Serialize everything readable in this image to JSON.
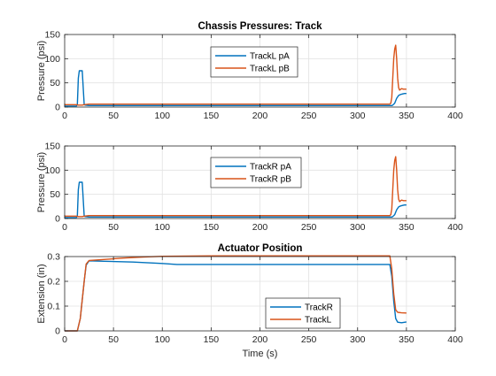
{
  "figure": {
    "background": "#ffffff"
  },
  "chart_data": [
    {
      "type": "line",
      "title": "Chassis Pressures: Track",
      "xlabel": "",
      "ylabel": "Pressure (psi)",
      "xlim": [
        0,
        400
      ],
      "ylim": [
        0,
        150
      ],
      "xticks": [
        0,
        50,
        100,
        150,
        200,
        250,
        300,
        350,
        400
      ],
      "yticks": [
        0,
        50,
        100,
        150
      ],
      "grid": true,
      "legend": "top-center",
      "series": [
        {
          "name": "TrackL pA",
          "color": "#0072BD",
          "points": [
            [
              0,
              2
            ],
            [
              12,
              2
            ],
            [
              13,
              5
            ],
            [
              14,
              60
            ],
            [
              15,
              75
            ],
            [
              18,
              75
            ],
            [
              19,
              40
            ],
            [
              20,
              5
            ],
            [
              21,
              4
            ],
            [
              25,
              3
            ],
            [
              60,
              3
            ],
            [
              150,
              3
            ],
            [
              250,
              3
            ],
            [
              335,
              3
            ],
            [
              336,
              4
            ],
            [
              338,
              8
            ],
            [
              340,
              18
            ],
            [
              342,
              24
            ],
            [
              344,
              26
            ],
            [
              346,
              27
            ],
            [
              348,
              28
            ],
            [
              350,
              28
            ]
          ]
        },
        {
          "name": "TrackL pB",
          "color": "#D95319",
          "points": [
            [
              0,
              5
            ],
            [
              12,
              5
            ],
            [
              14,
              4
            ],
            [
              18,
              4
            ],
            [
              20,
              5
            ],
            [
              25,
              6
            ],
            [
              50,
              6
            ],
            [
              100,
              6
            ],
            [
              200,
              6
            ],
            [
              300,
              6
            ],
            [
              333,
              6
            ],
            [
              334,
              8
            ],
            [
              335,
              20
            ],
            [
              336,
              60
            ],
            [
              337,
              100
            ],
            [
              338,
              120
            ],
            [
              339,
              128
            ],
            [
              340,
              100
            ],
            [
              341,
              60
            ],
            [
              342,
              40
            ],
            [
              343,
              35
            ],
            [
              345,
              38
            ],
            [
              347,
              37
            ],
            [
              350,
              37
            ]
          ]
        }
      ]
    },
    {
      "type": "line",
      "title": "",
      "xlabel": "",
      "ylabel": "Pressure (psi)",
      "xlim": [
        0,
        400
      ],
      "ylim": [
        0,
        150
      ],
      "xticks": [
        0,
        50,
        100,
        150,
        200,
        250,
        300,
        350,
        400
      ],
      "yticks": [
        0,
        50,
        100,
        150
      ],
      "grid": true,
      "legend": "top-center",
      "series": [
        {
          "name": "TrackR pA",
          "color": "#0072BD",
          "points": [
            [
              0,
              2
            ],
            [
              12,
              2
            ],
            [
              13,
              5
            ],
            [
              14,
              60
            ],
            [
              15,
              75
            ],
            [
              18,
              75
            ],
            [
              19,
              40
            ],
            [
              20,
              5
            ],
            [
              21,
              4
            ],
            [
              25,
              3
            ],
            [
              60,
              3
            ],
            [
              150,
              3
            ],
            [
              250,
              3
            ],
            [
              335,
              3
            ],
            [
              336,
              4
            ],
            [
              338,
              8
            ],
            [
              340,
              18
            ],
            [
              342,
              24
            ],
            [
              344,
              26
            ],
            [
              346,
              27
            ],
            [
              348,
              28
            ],
            [
              350,
              28
            ]
          ]
        },
        {
          "name": "TrackR pB",
          "color": "#D95319",
          "points": [
            [
              0,
              5
            ],
            [
              12,
              5
            ],
            [
              14,
              4
            ],
            [
              18,
              4
            ],
            [
              20,
              5
            ],
            [
              25,
              6
            ],
            [
              50,
              6
            ],
            [
              100,
              6
            ],
            [
              200,
              6
            ],
            [
              300,
              6
            ],
            [
              333,
              6
            ],
            [
              334,
              8
            ],
            [
              335,
              20
            ],
            [
              336,
              60
            ],
            [
              337,
              100
            ],
            [
              338,
              120
            ],
            [
              339,
              128
            ],
            [
              340,
              100
            ],
            [
              341,
              60
            ],
            [
              342,
              40
            ],
            [
              343,
              35
            ],
            [
              345,
              38
            ],
            [
              347,
              37
            ],
            [
              350,
              37
            ]
          ]
        }
      ]
    },
    {
      "type": "line",
      "title": "Actuator Position",
      "xlabel": "Time (s)",
      "ylabel": "Extension (in)",
      "xlim": [
        0,
        400
      ],
      "ylim": [
        0,
        0.3
      ],
      "xticks": [
        0,
        50,
        100,
        150,
        200,
        250,
        300,
        350,
        400
      ],
      "yticks": [
        0,
        0.1,
        0.2,
        0.3
      ],
      "ytick_labels": [
        "0",
        "0.1",
        "0.2",
        "0.3"
      ],
      "grid": true,
      "legend": "bottom-center",
      "series": [
        {
          "name": "TrackR",
          "color": "#0072BD",
          "points": [
            [
              0,
              0
            ],
            [
              13,
              0
            ],
            [
              16,
              0.05
            ],
            [
              20,
              0.2
            ],
            [
              22,
              0.265
            ],
            [
              25,
              0.283
            ],
            [
              40,
              0.281
            ],
            [
              70,
              0.278
            ],
            [
              100,
              0.272
            ],
            [
              115,
              0.268
            ],
            [
              200,
              0.268
            ],
            [
              300,
              0.268
            ],
            [
              333,
              0.268
            ],
            [
              335,
              0.22
            ],
            [
              337,
              0.12
            ],
            [
              339,
              0.05
            ],
            [
              341,
              0.035
            ],
            [
              345,
              0.033
            ],
            [
              350,
              0.036
            ]
          ]
        },
        {
          "name": "TrackL",
          "color": "#D95319",
          "points": [
            [
              0,
              0
            ],
            [
              13,
              0
            ],
            [
              16,
              0.05
            ],
            [
              20,
              0.2
            ],
            [
              22,
              0.27
            ],
            [
              25,
              0.284
            ],
            [
              40,
              0.288
            ],
            [
              60,
              0.294
            ],
            [
              80,
              0.298
            ],
            [
              100,
              0.301
            ],
            [
              150,
              0.303
            ],
            [
              250,
              0.303
            ],
            [
              333,
              0.303
            ],
            [
              335,
              0.25
            ],
            [
              337,
              0.15
            ],
            [
              339,
              0.085
            ],
            [
              341,
              0.075
            ],
            [
              345,
              0.073
            ],
            [
              350,
              0.072
            ]
          ]
        }
      ]
    }
  ]
}
